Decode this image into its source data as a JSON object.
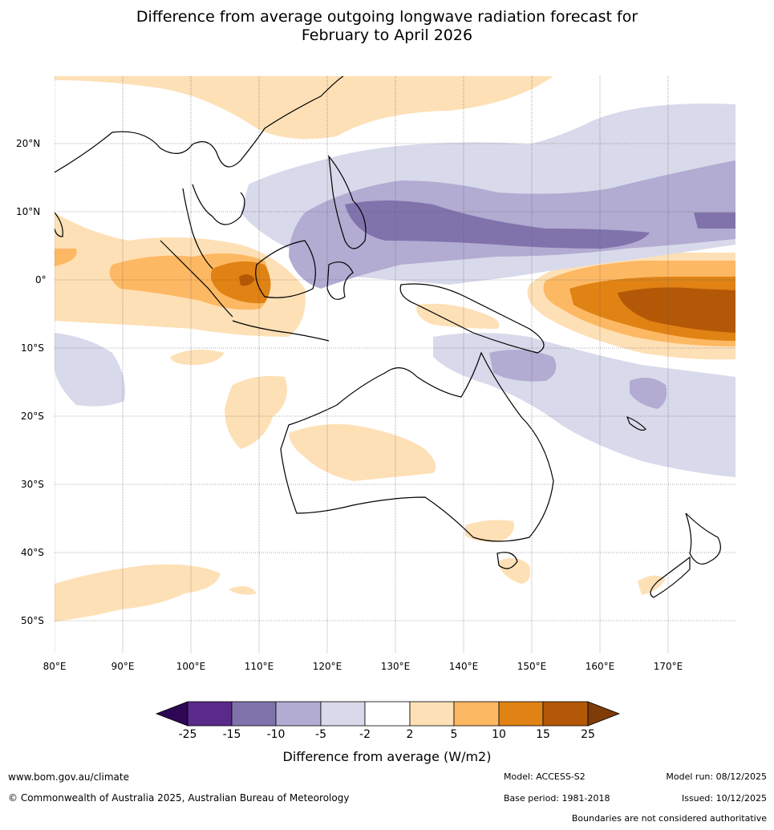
{
  "title_line1": "Difference from average outgoing longwave radiation forecast for",
  "title_line2": "February to April 2026",
  "lat_labels": [
    "20°N",
    "10°N",
    "0°",
    "10°S",
    "20°S",
    "30°S",
    "40°S",
    "50°S"
  ],
  "lon_labels": [
    "80°E",
    "90°E",
    "100°E",
    "110°E",
    "120°E",
    "130°E",
    "140°E",
    "150°E",
    "160°E",
    "170°E"
  ],
  "colorbar": {
    "ticks": [
      "-25",
      "-15",
      "-10",
      "-5",
      "-2",
      "2",
      "5",
      "10",
      "15",
      "25"
    ],
    "colors": [
      "#2e0854",
      "#5a2a8a",
      "#8073ac",
      "#b2abd2",
      "#d8daeb",
      "#ffffff",
      "#fee0b6",
      "#fdb863",
      "#e08214",
      "#b35806",
      "#7f3b08"
    ],
    "title": "Difference from average (W/m2)"
  },
  "footer": {
    "url": "www.bom.gov.au/climate",
    "copyright": "© Commonwealth of Australia 2025, Australian Bureau of Meteorology",
    "model": "Model: ACCESS-S2",
    "base_period": "Base period: 1981-2018",
    "model_run": "Model run: 08/12/2025",
    "issued": "Issued: 10/12/2025",
    "disclaimer": "Boundaries are not considered authoritative"
  }
}
